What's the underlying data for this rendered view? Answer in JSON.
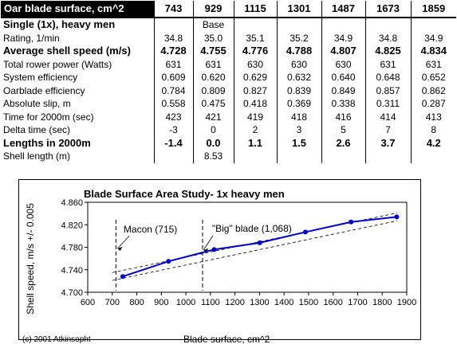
{
  "table": {
    "header": {
      "title": "Oar blade surface, cm^2",
      "columns": [
        "743",
        "929",
        "1115",
        "1301",
        "1487",
        "1673",
        "1859"
      ]
    },
    "rows": [
      {
        "label": "Single (1x), heavy men",
        "bold": true,
        "values": [
          "",
          "Base",
          "",
          "",
          "",
          "",
          ""
        ],
        "base_row": true
      },
      {
        "label": "Rating, 1/min",
        "bold": false,
        "values": [
          "34.8",
          "35.0",
          "35.1",
          "35.2",
          "34.9",
          "34.8",
          "34.9"
        ]
      },
      {
        "label": "Average shell speed (m/s)",
        "bold": true,
        "values": [
          "4.728",
          "4.755",
          "4.776",
          "4.788",
          "4.807",
          "4.825",
          "4.834"
        ]
      },
      {
        "label": "Total rower power (Watts)",
        "bold": false,
        "values": [
          "631",
          "631",
          "630",
          "630",
          "630",
          "631",
          "631"
        ]
      },
      {
        "label": "System efficiency",
        "bold": false,
        "values": [
          "0.609",
          "0.620",
          "0.629",
          "0.632",
          "0.640",
          "0.648",
          "0.652"
        ]
      },
      {
        "label": "Oarblade efficiency",
        "bold": false,
        "values": [
          "0.784",
          "0.809",
          "0.827",
          "0.839",
          "0.849",
          "0.857",
          "0.862"
        ]
      },
      {
        "label": "Absolute slip, m",
        "bold": false,
        "values": [
          "0.558",
          "0.475",
          "0.418",
          "0.369",
          "0.338",
          "0.311",
          "0.287"
        ]
      },
      {
        "label": "Time for 2000m (sec)",
        "bold": false,
        "values": [
          "423",
          "421",
          "419",
          "418",
          "416",
          "414",
          "413"
        ]
      },
      {
        "label": "Delta time (sec)",
        "bold": false,
        "values": [
          "-3",
          "0",
          "2",
          "3",
          "5",
          "7",
          "8"
        ]
      },
      {
        "label": "Lengths in 2000m",
        "bold": true,
        "values": [
          "-1.4",
          "0.0",
          "1.1",
          "1.5",
          "2.6",
          "3.7",
          "4.2"
        ]
      },
      {
        "label": "Shell length (m)",
        "bold": false,
        "values": [
          "",
          "8.53",
          "",
          "",
          "",
          "",
          ""
        ]
      }
    ]
  },
  "chart_data": {
    "type": "line",
    "title": "Blade Surface Area Study- 1x heavy men",
    "xlabel": "Blade surface, cm^2",
    "ylabel": "Shell speed, m/s +/- 0.005",
    "xlim": [
      600,
      1900
    ],
    "ylim": [
      4.7,
      4.86
    ],
    "x_ticks": [
      "600",
      "700",
      "800",
      "900",
      "1000",
      "1100",
      "1200",
      "1300",
      "1400",
      "1500",
      "1600",
      "1700",
      "1800",
      "1900"
    ],
    "y_ticks": [
      "4.700",
      "4.740",
      "4.780",
      "4.820",
      "4.860"
    ],
    "grid": false,
    "series": [
      {
        "x": [
          743,
          929,
          1115,
          1301,
          1487,
          1673,
          1859
        ],
        "y": [
          4.728,
          4.755,
          4.776,
          4.788,
          4.807,
          4.825,
          4.834
        ],
        "color": "#0000cc"
      }
    ],
    "trend_band": {
      "x": [
        700,
        1860
      ],
      "upper": [
        4.735,
        4.841
      ],
      "lower": [
        4.721,
        4.827
      ]
    },
    "markers": [
      {
        "label": "Macon (715)",
        "x": 715
      },
      {
        "label": "\"Big\" blade (1,068)",
        "x": 1068
      }
    ],
    "copyright": "(c) 2001 Atkinsopht"
  }
}
